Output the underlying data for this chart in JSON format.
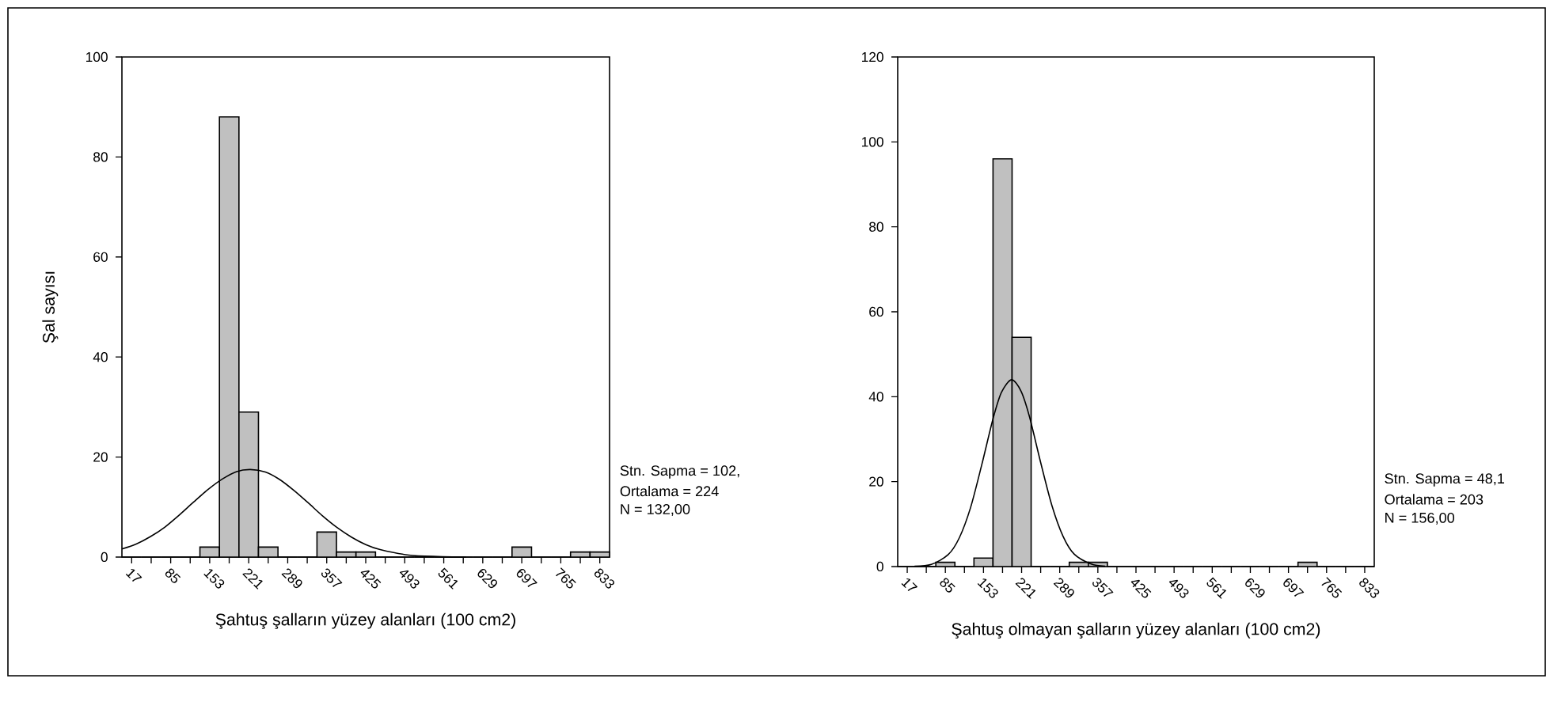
{
  "chart_data": [
    {
      "type": "histogram",
      "xlabel": "Şahtuş şalların yüzey alanları (100 cm2)",
      "ylabel": "Şal sayısı",
      "series": [
        {
          "color": "#c0c0c0",
          "bins": [
            0,
            34,
            68,
            102,
            136,
            170,
            204,
            238,
            272,
            306,
            340,
            374,
            408,
            442,
            476,
            510,
            544,
            578,
            612,
            646,
            680,
            714,
            748,
            782,
            816,
            850
          ],
          "values": [
            0,
            0,
            0,
            0,
            2,
            88,
            29,
            2,
            0,
            0,
            5,
            1,
            1,
            0,
            0,
            0,
            0,
            0,
            0,
            0,
            2,
            0,
            0,
            1,
            1
          ]
        },
        {
          "type": "line",
          "color": "#000000",
          "x": [
            0,
            25,
            50,
            75,
            100,
            125,
            150,
            175,
            200,
            224,
            250,
            275,
            300,
            325,
            350,
            375,
            400,
            425,
            450,
            500,
            550,
            600
          ],
          "values": [
            1.6,
            2.6,
            4.1,
            6.0,
            8.4,
            11.0,
            13.5,
            15.6,
            17.1,
            17.5,
            17.0,
            15.5,
            13.3,
            10.8,
            8.2,
            5.9,
            4.0,
            2.5,
            1.5,
            0.4,
            0.1,
            0
          ]
        }
      ],
      "xlim": [
        0,
        850
      ],
      "xticks": [
        17,
        {
          "value": 51,
          "label": null
        },
        85,
        {
          "value": 119,
          "label": null
        },
        153,
        {
          "value": 187,
          "label": null
        },
        221,
        {
          "value": 255,
          "label": null
        },
        289,
        {
          "value": 323,
          "label": null
        },
        357,
        {
          "value": 391,
          "label": null
        },
        425,
        {
          "value": 459,
          "label": null
        },
        493,
        {
          "value": 527,
          "label": null
        },
        561,
        {
          "value": 595,
          "label": null
        },
        629,
        {
          "value": 663,
          "label": null
        },
        697,
        {
          "value": 731,
          "label": null
        },
        765,
        {
          "value": 799,
          "label": null
        },
        833
      ],
      "ylim": [
        0,
        100
      ],
      "yticks": [
        0,
        20,
        40,
        60,
        80,
        100
      ],
      "annotations": [
        "Stn. Sapma = 102,",
        "Ortalama = 224",
        "N = 132,00"
      ]
    },
    {
      "type": "histogram",
      "xlabel": "Şahtuş olmayan şalların yüzey alanları (100 cm2)",
      "series": [
        {
          "color": "#c0c0c0",
          "bins": [
            0,
            34,
            68,
            102,
            136,
            170,
            204,
            238,
            272,
            306,
            340,
            374,
            408,
            442,
            476,
            510,
            544,
            578,
            612,
            646,
            680,
            714,
            748,
            782,
            816,
            850
          ],
          "values": [
            0,
            0,
            1,
            0,
            2,
            96,
            54,
            0,
            0,
            1,
            1,
            0,
            0,
            0,
            0,
            0,
            0,
            0,
            0,
            0,
            0,
            1,
            0,
            0,
            0
          ]
        },
        {
          "type": "line",
          "color": "#000000",
          "x": [
            30,
            60,
            90,
            110,
            130,
            150,
            170,
            185,
            203,
            220,
            235,
            255,
            275,
            295,
            315,
            345,
            370
          ],
          "values": [
            0.1,
            0.5,
            2.8,
            6.8,
            13.9,
            24.0,
            34.8,
            41.0,
            44.0,
            41.3,
            35.3,
            24.5,
            14.4,
            7.1,
            2.9,
            0.6,
            0.1
          ]
        }
      ],
      "xlim": [
        0,
        850
      ],
      "xticks": [
        17,
        {
          "value": 51,
          "label": null
        },
        85,
        {
          "value": 119,
          "label": null
        },
        153,
        {
          "value": 187,
          "label": null
        },
        221,
        {
          "value": 255,
          "label": null
        },
        289,
        {
          "value": 323,
          "label": null
        },
        357,
        {
          "value": 391,
          "label": null
        },
        425,
        {
          "value": 459,
          "label": null
        },
        493,
        {
          "value": 527,
          "label": null
        },
        561,
        {
          "value": 595,
          "label": null
        },
        629,
        {
          "value": 663,
          "label": null
        },
        697,
        {
          "value": 731,
          "label": null
        },
        765,
        {
          "value": 799,
          "label": null
        },
        833
      ],
      "ylim": [
        0,
        120
      ],
      "yticks": [
        0,
        20,
        40,
        60,
        80,
        100,
        120
      ],
      "annotations": [
        "Stn. Sapma = 48,1",
        "Ortalama = 203",
        "N = 156,00"
      ]
    }
  ]
}
